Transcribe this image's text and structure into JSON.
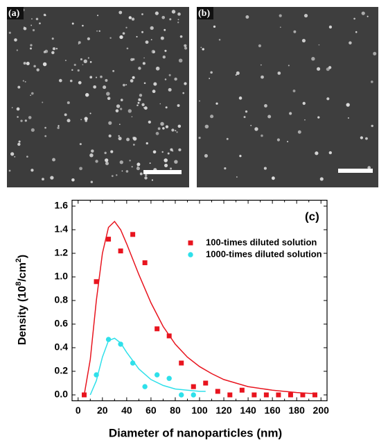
{
  "panels": [
    {
      "label": "(a)"
    },
    {
      "label": "(b)"
    }
  ],
  "chart_data": {
    "type": "scatter",
    "annotation": "(c)",
    "xlabel": "Diameter of nanoparticles (nm)",
    "ylabel_parts": [
      "Density (10",
      "8",
      "/cm",
      "2",
      ")"
    ],
    "xlim": [
      -5,
      205
    ],
    "ylim": [
      -0.05,
      1.65
    ],
    "xticks": [
      0,
      10,
      20,
      30,
      40,
      50,
      60,
      70,
      80,
      90,
      100,
      110,
      120,
      130,
      140,
      150,
      160,
      170,
      180,
      190,
      200
    ],
    "xtick_labels_every": 2,
    "yticks": [
      {
        "value": 0,
        "label": "0.0"
      },
      0.2,
      0.4,
      0.6,
      0.8,
      {
        "value": 1,
        "label": "1.0"
      },
      1.2,
      1.4,
      1.6
    ],
    "legend": "upper right",
    "series": [
      {
        "name": "100-times diluted solution",
        "color": "#e8141e",
        "marker": "square",
        "x": [
          5,
          15,
          25,
          35,
          45,
          55,
          65,
          75,
          85,
          95,
          105,
          115,
          125,
          135,
          145,
          155,
          165,
          175,
          185,
          195
        ],
        "values": [
          0.0,
          0.96,
          1.32,
          1.22,
          1.36,
          1.12,
          0.56,
          0.5,
          0.27,
          0.07,
          0.1,
          0.03,
          0.0,
          0.04,
          0.0,
          0.0,
          0.0,
          0.0,
          0.0,
          0.0
        ]
      },
      {
        "name": "1000-times diluted solution",
        "color": "#2ee0ea",
        "marker": "circle",
        "x": [
          15,
          25,
          35,
          45,
          55,
          65,
          75,
          85,
          95
        ],
        "values": [
          0.17,
          0.47,
          0.43,
          0.27,
          0.07,
          0.17,
          0.14,
          0.0,
          0.0
        ]
      }
    ],
    "fits": [
      {
        "color": "#e8141e",
        "x": [
          5,
          10,
          15,
          20,
          25,
          30,
          35,
          40,
          50,
          60,
          70,
          80,
          90,
          100,
          110,
          120,
          140,
          160,
          180,
          195
        ],
        "values": [
          0.0,
          0.3,
          0.8,
          1.2,
          1.42,
          1.47,
          1.4,
          1.28,
          1.02,
          0.78,
          0.58,
          0.43,
          0.32,
          0.24,
          0.18,
          0.13,
          0.07,
          0.04,
          0.02,
          0.01
        ]
      },
      {
        "color": "#2ee0ea",
        "x": [
          10,
          15,
          20,
          25,
          30,
          35,
          40,
          50,
          60,
          70,
          80,
          90,
          100,
          105
        ],
        "values": [
          0.0,
          0.12,
          0.32,
          0.46,
          0.48,
          0.44,
          0.36,
          0.22,
          0.13,
          0.08,
          0.05,
          0.04,
          0.03,
          0.03
        ]
      }
    ]
  }
}
